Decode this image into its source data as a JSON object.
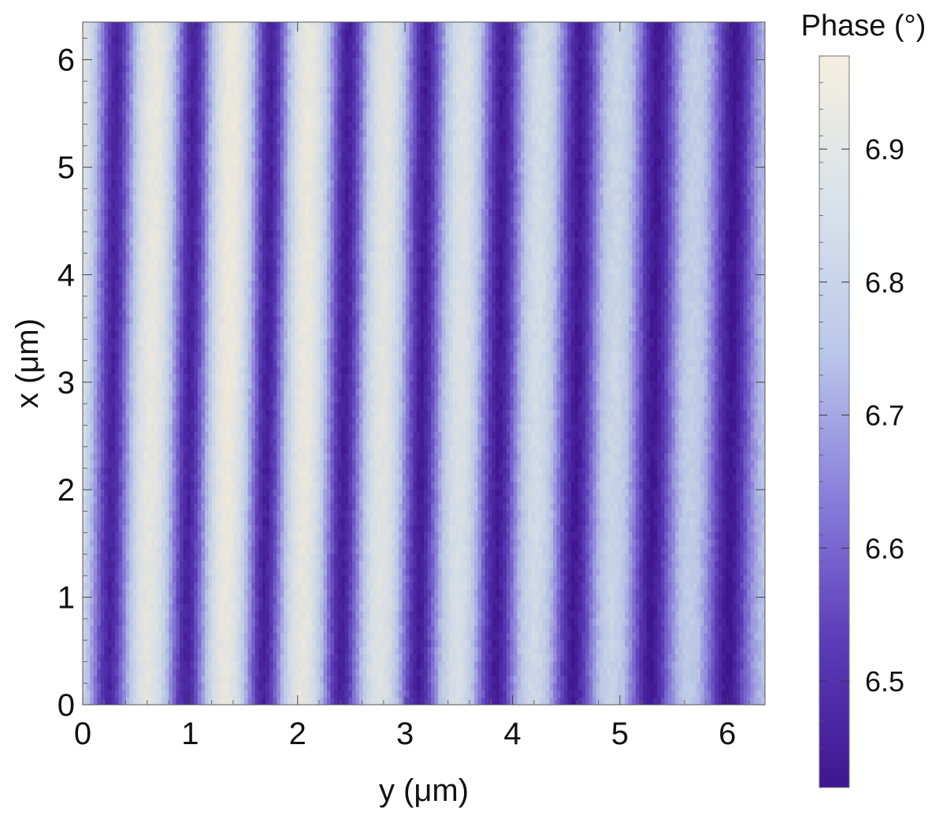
{
  "chart_data": {
    "type": "heatmap",
    "title": "",
    "xlabel": "y (μm)",
    "ylabel": "x (μm)",
    "xlim": [
      0,
      6.35
    ],
    "ylim": [
      0,
      6.35
    ],
    "x_ticks": [
      0,
      1,
      2,
      3,
      4,
      5,
      6
    ],
    "y_ticks": [
      0,
      1,
      2,
      3,
      4,
      5,
      6
    ],
    "grid": false,
    "description_values": {
      "stripe_orientation": "vertical",
      "stripe_period_um": 0.72
    },
    "colorbar": {
      "label": "Phase (°)",
      "range": [
        6.42,
        6.97
      ],
      "ticks": [
        6.5,
        6.6,
        6.7,
        6.8,
        6.9
      ],
      "colors": [
        "#3f1691",
        "#5b3cb8",
        "#8a7fdc",
        "#bcc8ea",
        "#d9e2ea",
        "#f4eee0"
      ]
    }
  }
}
